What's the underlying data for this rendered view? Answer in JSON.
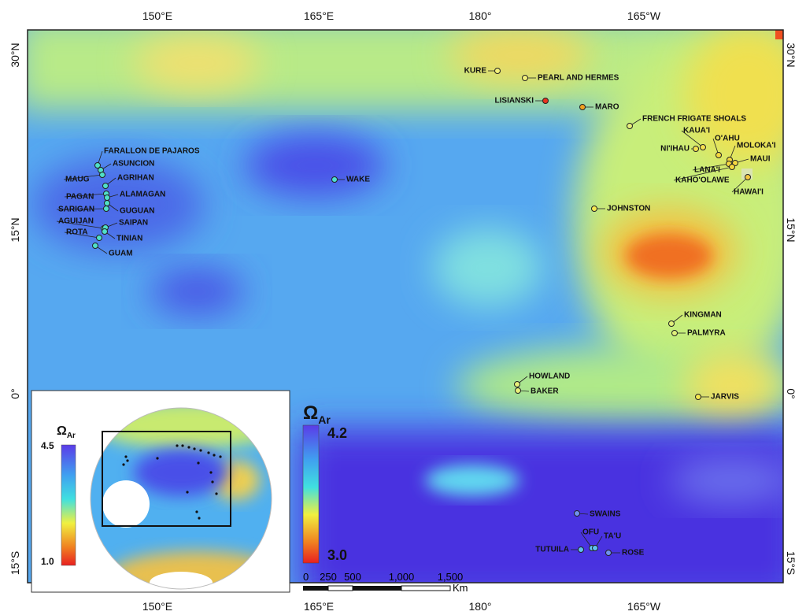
{
  "map": {
    "lon_labels": [
      "150°E",
      "165°E",
      "180°",
      "165°W"
    ],
    "lat_labels": [
      "30°N",
      "15°N",
      "0°",
      "15°S"
    ],
    "islands": [
      {
        "label": "KURE",
        "color": "#f3f07a"
      },
      {
        "label": "PEARL AND HERMES",
        "color": "#f3f07a"
      },
      {
        "label": "LISIANSKI",
        "color": "#e8321e"
      },
      {
        "label": "MARO",
        "color": "#f0a020"
      },
      {
        "label": "FRENCH FRIGATE SHOALS",
        "color": "#e6f07a"
      },
      {
        "label": "KAUA'I",
        "color": "#f5e050"
      },
      {
        "label": "NI'IHAU",
        "color": "#f5e050"
      },
      {
        "label": "O'AHU",
        "color": "#f5d840"
      },
      {
        "label": "MOLOKA'I",
        "color": "#f5d840"
      },
      {
        "label": "MAUI",
        "color": "#f5d840"
      },
      {
        "label": "LANA'I",
        "color": "#f5d840"
      },
      {
        "label": "KAHO'OLAWE",
        "color": "#f5d840"
      },
      {
        "label": "HAWAI'I",
        "color": "#f5c840"
      },
      {
        "label": "WAKE",
        "color": "#50e0d0"
      },
      {
        "label": "JOHNSTON",
        "color": "#f5e850"
      },
      {
        "label": "KINGMAN",
        "color": "#e0f07a"
      },
      {
        "label": "PALMYRA",
        "color": "#e0f07a"
      },
      {
        "label": "HOWLAND",
        "color": "#e8f07a"
      },
      {
        "label": "BAKER",
        "color": "#e8f07a"
      },
      {
        "label": "JARVIS",
        "color": "#f5e850"
      },
      {
        "label": "SWAINS",
        "color": "#7090f0"
      },
      {
        "label": "OFU",
        "color": "#60c0f0"
      },
      {
        "label": "TA'U",
        "color": "#60c0f0"
      },
      {
        "label": "TUTUILA",
        "color": "#60c0f0"
      },
      {
        "label": "ROSE",
        "color": "#7090f0"
      },
      {
        "label": "FARALLON DE PAJAROS",
        "color": "#50e0c8"
      },
      {
        "label": "ASUNCION",
        "color": "#50e0c8"
      },
      {
        "label": "MAUG",
        "color": "#50e0c8"
      },
      {
        "label": "AGRIHAN",
        "color": "#50e0c8"
      },
      {
        "label": "PAGAN",
        "color": "#50e0c8"
      },
      {
        "label": "ALAMAGAN",
        "color": "#50e0c8"
      },
      {
        "label": "GUGUAN",
        "color": "#50e0c8"
      },
      {
        "label": "SARIGAN",
        "color": "#50e0c8"
      },
      {
        "label": "AGUIJAN",
        "color": "#50e0c8"
      },
      {
        "label": "SAIPAN",
        "color": "#50e0c8"
      },
      {
        "label": "ROTA",
        "color": "#50e0c8"
      },
      {
        "label": "TINIAN",
        "color": "#50e0c8"
      },
      {
        "label": "GUAM",
        "color": "#50e0c8"
      }
    ]
  },
  "legend": {
    "symbol": "Ω",
    "subscript": "Ar",
    "max": "4.2",
    "min": "3.0"
  },
  "inset_legend": {
    "symbol": "Ω",
    "subscript": "Ar",
    "max": "4.5",
    "min": "1.0"
  },
  "scale_bar": {
    "labels": [
      "0",
      "250",
      "500",
      "1,000",
      "1,500"
    ],
    "unit": "Km"
  }
}
